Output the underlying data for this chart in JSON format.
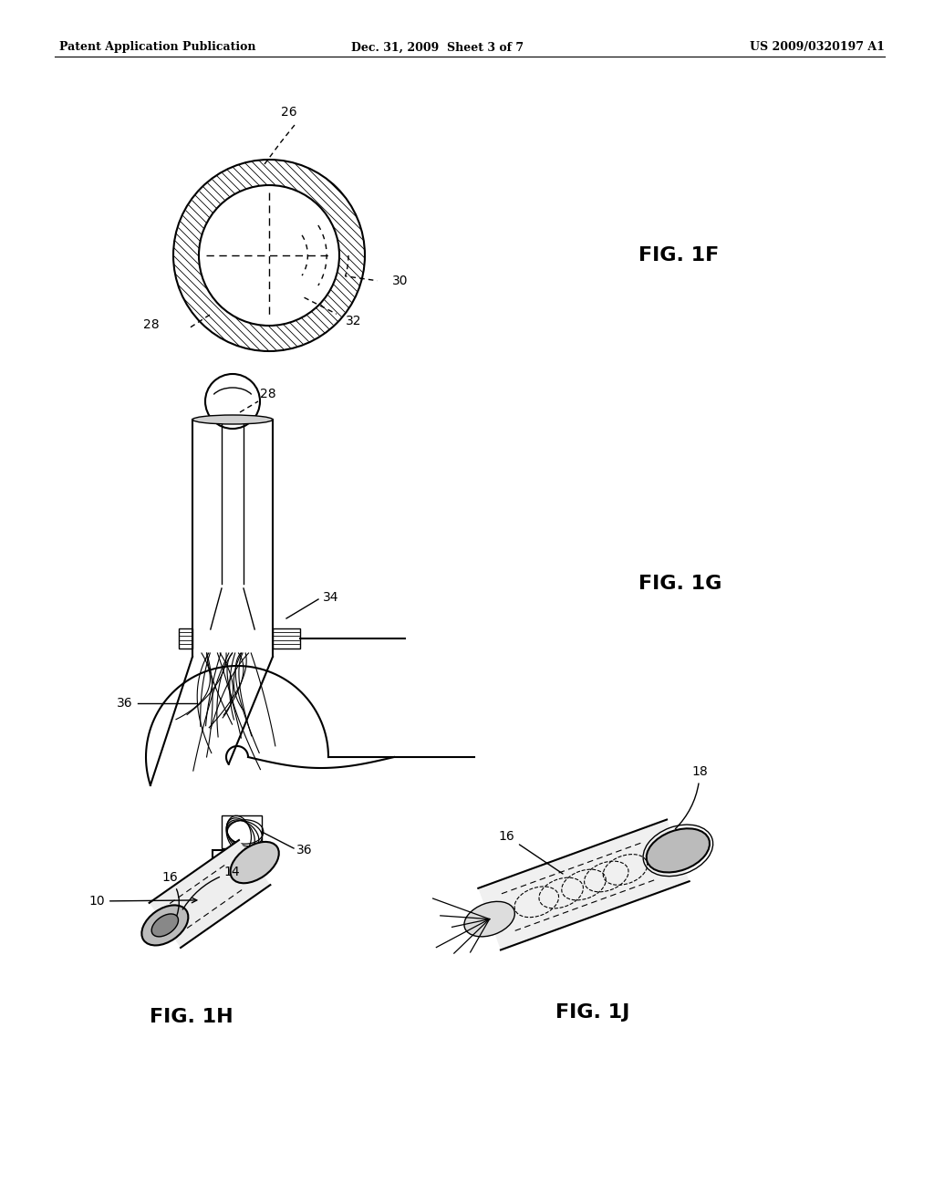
{
  "background_color": "#ffffff",
  "line_color": "#000000",
  "header_left": "Patent Application Publication",
  "header_center": "Dec. 31, 2009  Sheet 3 of 7",
  "header_right": "US 2009/0320197 A1",
  "fig1f_label": "FIG. 1F",
  "fig1g_label": "FIG. 1G",
  "fig1h_label": "FIG. 1H",
  "fig1j_label": "FIG. 1J"
}
